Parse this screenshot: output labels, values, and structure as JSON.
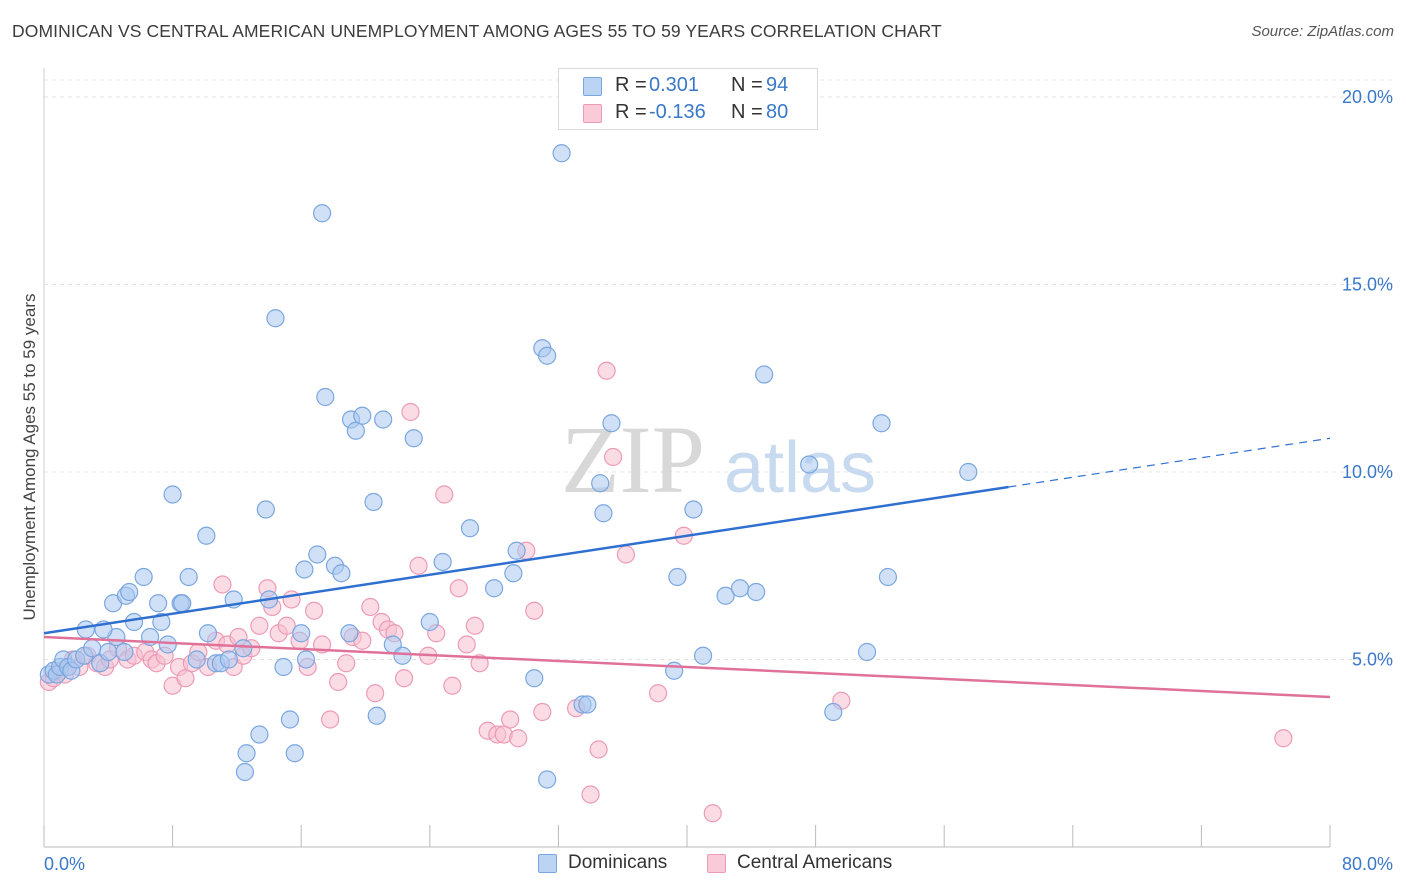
{
  "title": "DOMINICAN VS CENTRAL AMERICAN UNEMPLOYMENT AMONG AGES 55 TO 59 YEARS CORRELATION CHART",
  "source": "Source: ZipAtlas.com",
  "watermark": {
    "zip": "ZIP",
    "atlas": "atlas"
  },
  "legend": {
    "rows": [
      {
        "r_label": "R =",
        "r_value": "0.301",
        "n_label": "N =",
        "n_value": "94"
      },
      {
        "r_label": "R =",
        "r_value": "-0.136",
        "n_label": "N =",
        "n_value": "80"
      }
    ],
    "bottom": [
      "Dominicans",
      "Central Americans"
    ]
  },
  "colors": {
    "blue_fill": "#aac8f0",
    "blue_stroke": "#7aa6df",
    "blue_line": "#2f6fd0",
    "pink_fill": "#f7bfd0",
    "pink_stroke": "#ec9ab5",
    "pink_line": "#e0729a",
    "tick_text": "#3a78c9",
    "grid": "#e3e3e3"
  },
  "chart_data": {
    "type": "scatter",
    "title": "DOMINICAN VS CENTRAL AMERICAN UNEMPLOYMENT AMONG AGES 55 TO 59 YEARS CORRELATION CHART",
    "xlabel": "",
    "ylabel": "Unemployment Among Ages 55 to 59 years",
    "xlim": [
      0,
      80
    ],
    "ylim": [
      0,
      20
    ],
    "x_ticks": [
      "0.0%",
      "80.0%"
    ],
    "y_ticks": [
      {
        "value": 5,
        "label": "5.0%"
      },
      {
        "value": 10,
        "label": "10.0%"
      },
      {
        "value": 15,
        "label": "15.0%"
      },
      {
        "value": 20,
        "label": "20.0%"
      }
    ],
    "grid": true,
    "legend_position": "top-center",
    "series": [
      {
        "name": "Dominicans",
        "color": "#aac8f0",
        "trend": {
          "x0": 0,
          "y0": 5.7,
          "x1": 60,
          "y1": 9.6,
          "dashed_to_x": 80,
          "dashed_to_y": 10.9
        },
        "points": [
          [
            0.3,
            4.6
          ],
          [
            0.6,
            4.7
          ],
          [
            0.8,
            4.6
          ],
          [
            1.0,
            4.8
          ],
          [
            1.2,
            5.0
          ],
          [
            1.5,
            4.8
          ],
          [
            1.7,
            4.7
          ],
          [
            2.0,
            5.0
          ],
          [
            2.5,
            5.1
          ],
          [
            3.0,
            5.3
          ],
          [
            3.5,
            4.9
          ],
          [
            4.0,
            5.2
          ],
          [
            4.5,
            5.6
          ],
          [
            5.0,
            5.2
          ],
          [
            2.6,
            5.8
          ],
          [
            3.7,
            5.8
          ],
          [
            4.3,
            6.5
          ],
          [
            5.1,
            6.7
          ],
          [
            5.6,
            6.0
          ],
          [
            5.3,
            6.8
          ],
          [
            6.2,
            7.2
          ],
          [
            6.6,
            5.6
          ],
          [
            7.1,
            6.5
          ],
          [
            7.3,
            6.0
          ],
          [
            7.7,
            5.4
          ],
          [
            8.0,
            9.4
          ],
          [
            8.5,
            6.5
          ],
          [
            8.6,
            6.5
          ],
          [
            9.0,
            7.2
          ],
          [
            9.5,
            5.0
          ],
          [
            10.1,
            8.3
          ],
          [
            10.2,
            5.7
          ],
          [
            10.7,
            4.9
          ],
          [
            11.0,
            4.9
          ],
          [
            11.5,
            5.0
          ],
          [
            11.8,
            6.6
          ],
          [
            12.4,
            5.3
          ],
          [
            12.5,
            2.0
          ],
          [
            12.6,
            2.5
          ],
          [
            13.4,
            3.0
          ],
          [
            13.8,
            9.0
          ],
          [
            14.0,
            6.6
          ],
          [
            14.4,
            14.1
          ],
          [
            14.9,
            4.8
          ],
          [
            15.3,
            3.4
          ],
          [
            15.6,
            2.5
          ],
          [
            16.0,
            5.7
          ],
          [
            16.2,
            7.4
          ],
          [
            16.3,
            5.0
          ],
          [
            17.0,
            7.8
          ],
          [
            17.3,
            16.9
          ],
          [
            17.5,
            12.0
          ],
          [
            18.1,
            7.5
          ],
          [
            18.5,
            7.3
          ],
          [
            19.0,
            5.7
          ],
          [
            19.1,
            11.4
          ],
          [
            19.4,
            11.1
          ],
          [
            19.8,
            11.5
          ],
          [
            20.5,
            9.2
          ],
          [
            20.7,
            3.5
          ],
          [
            21.1,
            11.4
          ],
          [
            21.7,
            5.4
          ],
          [
            22.3,
            5.1
          ],
          [
            23.0,
            10.9
          ],
          [
            24.0,
            6.0
          ],
          [
            24.8,
            7.6
          ],
          [
            26.5,
            8.5
          ],
          [
            28.0,
            6.9
          ],
          [
            29.2,
            7.3
          ],
          [
            29.4,
            7.9
          ],
          [
            30.5,
            4.5
          ],
          [
            31.0,
            13.3
          ],
          [
            31.3,
            13.1
          ],
          [
            31.3,
            1.8
          ],
          [
            32.2,
            18.5
          ],
          [
            33.5,
            3.8
          ],
          [
            33.8,
            3.8
          ],
          [
            34.6,
            9.7
          ],
          [
            34.8,
            8.9
          ],
          [
            35.3,
            11.3
          ],
          [
            39.2,
            4.7
          ],
          [
            39.4,
            7.2
          ],
          [
            40.4,
            9.0
          ],
          [
            41.0,
            5.1
          ],
          [
            42.4,
            6.7
          ],
          [
            43.3,
            6.9
          ],
          [
            44.3,
            6.8
          ],
          [
            44.8,
            12.6
          ],
          [
            47.6,
            10.2
          ],
          [
            49.1,
            3.6
          ],
          [
            51.2,
            5.2
          ],
          [
            52.1,
            11.3
          ],
          [
            52.5,
            7.2
          ],
          [
            57.5,
            10.0
          ]
        ]
      },
      {
        "name": "Central Americans",
        "color": "#f7bfd0",
        "trend": {
          "x0": 0,
          "y0": 5.6,
          "x1": 80,
          "y1": 4.0
        },
        "points": [
          [
            0.3,
            4.4
          ],
          [
            0.6,
            4.5
          ],
          [
            1.0,
            4.7
          ],
          [
            1.3,
            4.6
          ],
          [
            1.8,
            5.0
          ],
          [
            2.2,
            4.8
          ],
          [
            2.7,
            5.1
          ],
          [
            3.3,
            4.9
          ],
          [
            3.8,
            4.8
          ],
          [
            4.1,
            5.0
          ],
          [
            4.6,
            5.3
          ],
          [
            5.2,
            5.0
          ],
          [
            5.6,
            5.1
          ],
          [
            6.3,
            5.2
          ],
          [
            6.7,
            5.0
          ],
          [
            7.0,
            4.9
          ],
          [
            7.5,
            5.1
          ],
          [
            8.0,
            4.3
          ],
          [
            8.4,
            4.8
          ],
          [
            8.8,
            4.5
          ],
          [
            9.2,
            4.9
          ],
          [
            9.6,
            5.2
          ],
          [
            10.2,
            4.8
          ],
          [
            10.7,
            5.5
          ],
          [
            11.1,
            7.0
          ],
          [
            11.4,
            5.4
          ],
          [
            11.8,
            4.8
          ],
          [
            12.1,
            5.6
          ],
          [
            12.4,
            5.1
          ],
          [
            12.9,
            5.3
          ],
          [
            13.4,
            5.9
          ],
          [
            13.9,
            6.9
          ],
          [
            14.2,
            6.4
          ],
          [
            14.6,
            5.7
          ],
          [
            15.1,
            5.9
          ],
          [
            15.4,
            6.6
          ],
          [
            15.9,
            5.5
          ],
          [
            16.4,
            4.8
          ],
          [
            16.8,
            6.3
          ],
          [
            17.3,
            5.4
          ],
          [
            17.8,
            3.4
          ],
          [
            18.3,
            4.4
          ],
          [
            18.8,
            4.9
          ],
          [
            19.2,
            5.6
          ],
          [
            19.8,
            5.5
          ],
          [
            20.3,
            6.4
          ],
          [
            20.6,
            4.1
          ],
          [
            21.0,
            6.0
          ],
          [
            21.4,
            5.8
          ],
          [
            21.8,
            5.7
          ],
          [
            22.4,
            4.5
          ],
          [
            22.8,
            11.6
          ],
          [
            23.3,
            7.5
          ],
          [
            23.9,
            5.1
          ],
          [
            24.4,
            5.7
          ],
          [
            24.9,
            9.4
          ],
          [
            25.4,
            4.3
          ],
          [
            25.8,
            6.9
          ],
          [
            26.3,
            5.4
          ],
          [
            26.8,
            5.9
          ],
          [
            27.1,
            4.9
          ],
          [
            27.6,
            3.1
          ],
          [
            28.2,
            3.0
          ],
          [
            28.6,
            3.0
          ],
          [
            29.0,
            3.4
          ],
          [
            29.5,
            2.9
          ],
          [
            30.0,
            7.9
          ],
          [
            30.5,
            6.3
          ],
          [
            31.0,
            3.6
          ],
          [
            33.1,
            3.7
          ],
          [
            34.0,
            1.4
          ],
          [
            34.5,
            2.6
          ],
          [
            35.0,
            12.7
          ],
          [
            35.4,
            10.4
          ],
          [
            36.2,
            7.8
          ],
          [
            38.2,
            4.1
          ],
          [
            39.8,
            8.3
          ],
          [
            41.6,
            0.9
          ],
          [
            49.6,
            3.9
          ],
          [
            77.1,
            2.9
          ]
        ]
      }
    ]
  }
}
